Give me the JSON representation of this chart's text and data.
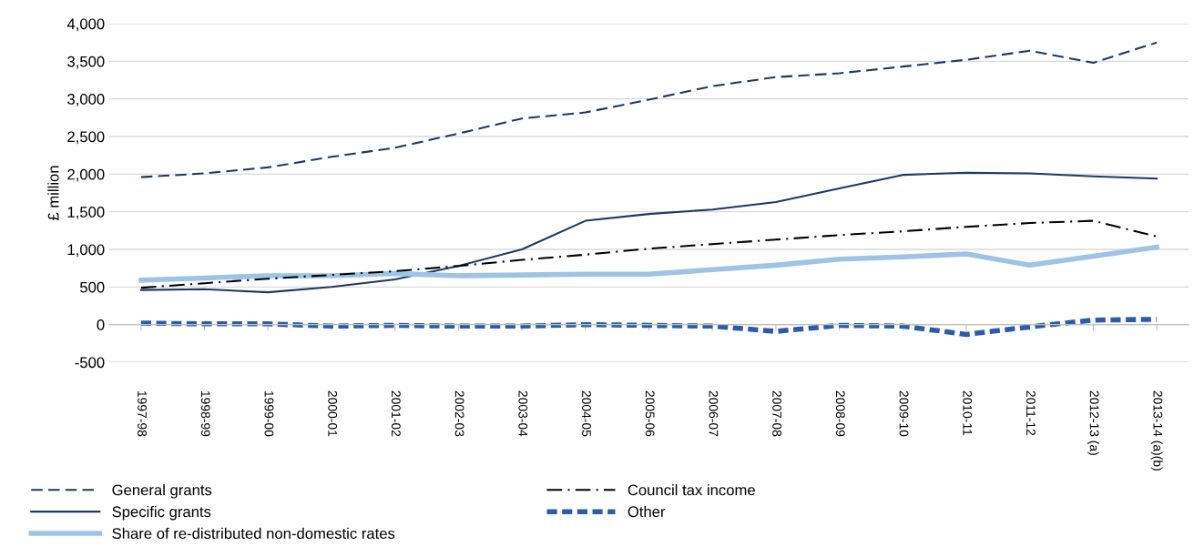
{
  "chart_data": {
    "type": "line",
    "ylabel": "£ million",
    "categories": [
      "1997-98",
      "1998-99",
      "1999-00",
      "2000-01",
      "2001-02",
      "2002-03",
      "2003-04",
      "2004-05",
      "2005-06",
      "2006-07",
      "2007-08",
      "2008-09",
      "2009-10",
      "2010-11",
      "2011-12",
      "2012-13 (a)",
      "2013-14 (a)(b)"
    ],
    "ylim": [
      -500,
      4000
    ],
    "yticks": [
      {
        "value": -500,
        "label": "-500"
      },
      {
        "value": 0,
        "label": "0"
      },
      {
        "value": 500,
        "label": "500"
      },
      {
        "value": 1000,
        "label": "1,000"
      },
      {
        "value": 1500,
        "label": "1,500"
      },
      {
        "value": 2000,
        "label": "2,000"
      },
      {
        "value": 2500,
        "label": "2,500"
      },
      {
        "value": 3000,
        "label": "3,000"
      },
      {
        "value": 3500,
        "label": "3,500"
      },
      {
        "value": 4000,
        "label": "4,000"
      }
    ],
    "grid": "y",
    "legend": "bottom",
    "marker": "none",
    "series": [
      {
        "name": "General grants",
        "color": "#1f3864",
        "line_style": "dashed",
        "values": [
          1960,
          2010,
          2090,
          2230,
          2350,
          2540,
          2740,
          2820,
          2990,
          3170,
          3290,
          3340,
          3430,
          3520,
          3640,
          3480,
          3750
        ]
      },
      {
        "name": "Specific grants",
        "color": "#1f3864",
        "line_style": "solid",
        "values": [
          460,
          470,
          430,
          500,
          600,
          780,
          1000,
          1380,
          1470,
          1530,
          1630,
          1810,
          1990,
          2020,
          2010,
          1970,
          1940
        ]
      },
      {
        "name": "Share of re-distributed non-domestic rates",
        "color": "#9dc3e6",
        "line_style": "solid",
        "values": [
          590,
          620,
          650,
          650,
          680,
          650,
          660,
          670,
          670,
          730,
          790,
          870,
          900,
          940,
          790,
          910,
          1030
        ]
      },
      {
        "name": "Council tax income",
        "color": "#000000",
        "line_style": "dashdot",
        "values": [
          490,
          550,
          610,
          660,
          710,
          780,
          860,
          930,
          1010,
          1070,
          1130,
          1190,
          1240,
          1300,
          1350,
          1380,
          1170
        ]
      },
      {
        "name": "Other",
        "color": "#2a5caa",
        "line_style": "dashed",
        "values": [
          20,
          10,
          10,
          -20,
          -10,
          -20,
          -20,
          0,
          -10,
          -20,
          -90,
          -10,
          -20,
          -130,
          -30,
          60,
          70
        ]
      }
    ]
  }
}
